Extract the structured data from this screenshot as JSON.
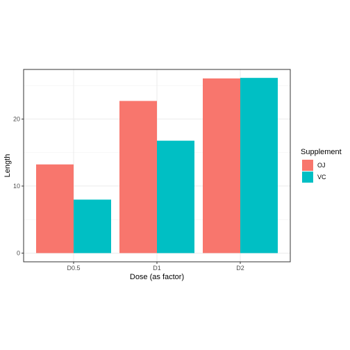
{
  "chart_data": {
    "type": "bar",
    "title": "",
    "xlabel": "Dose (as factor)",
    "ylabel": "Length",
    "categories": [
      "D0.5",
      "D1",
      "D2"
    ],
    "series": [
      {
        "name": "OJ",
        "values": [
          13.23,
          22.7,
          26.06
        ],
        "color": "#F8766D"
      },
      {
        "name": "VC",
        "values": [
          7.98,
          16.77,
          26.14
        ],
        "color": "#00BFC4"
      }
    ],
    "ylim": [
      -1.3,
      27.4
    ],
    "yticks": [
      0,
      10,
      20
    ],
    "legend": {
      "title": "Supplement",
      "position": "right"
    },
    "grid": true
  }
}
